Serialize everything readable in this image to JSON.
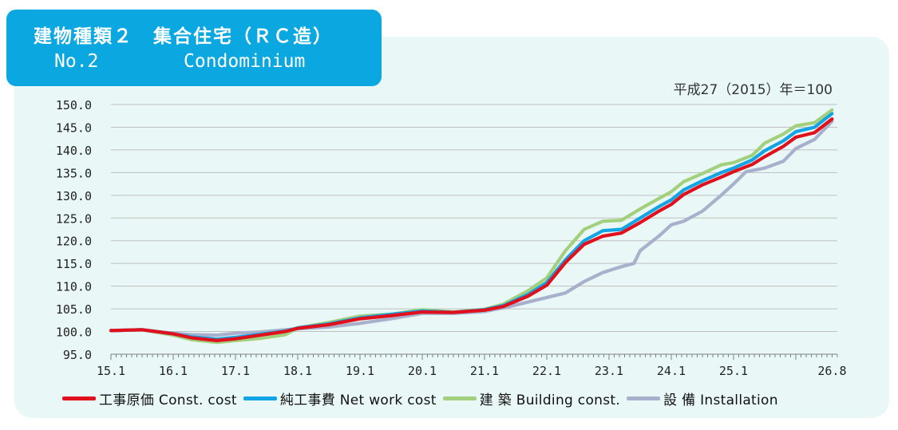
{
  "title": {
    "jp": "建物種類２　集合住宅（ＲＣ造）",
    "no": "No.2",
    "en": "Condominium"
  },
  "base_note": "平成27（2015）年＝100",
  "colors": {
    "title_bg": "#0aa7e0",
    "panel_bg": "#e9f8f6",
    "const_cost": "#e0101c",
    "net_work_cost": "#12a4e4",
    "building_const": "#a3d07c",
    "installation": "#a9b0cb"
  },
  "legend": [
    {
      "label": "工事原価  Const. cost",
      "color": "#e0101c"
    },
    {
      "label": "純工事費  Net work cost",
      "color": "#12a4e4"
    },
    {
      "label": "建 築  Building const.",
      "color": "#a3d07c"
    },
    {
      "label": "設 備  Installation",
      "color": "#a9b0cb"
    }
  ],
  "chart_data": {
    "type": "line",
    "title": "",
    "xlabel": "",
    "ylabel": "",
    "ylim": [
      95.0,
      150.0
    ],
    "yticks": [
      "95.0",
      "100.0",
      "105.0",
      "110.0",
      "115.0",
      "120.0",
      "125.0",
      "130.0",
      "135.0",
      "140.0",
      "145.0",
      "150.0"
    ],
    "xlim": [
      15.0,
      26.667
    ],
    "xticks": [
      {
        "label": "15.1",
        "x": 15.0
      },
      {
        "label": "16.1",
        "x": 16.0
      },
      {
        "label": "17.1",
        "x": 17.0
      },
      {
        "label": "18.1",
        "x": 18.0
      },
      {
        "label": "19.1",
        "x": 19.0
      },
      {
        "label": "20.1",
        "x": 20.0
      },
      {
        "label": "21.1",
        "x": 21.0
      },
      {
        "label": "22.1",
        "x": 22.0
      },
      {
        "label": "23.1",
        "x": 23.0
      },
      {
        "label": "24.1",
        "x": 24.0
      },
      {
        "label": "25.1",
        "x": 25.0
      },
      {
        "label": "26.8",
        "x": 26.583
      }
    ],
    "grid": true,
    "legend_position": "bottom",
    "series": [
      {
        "name": "工事原価  Const. cost",
        "color": "#e0101c",
        "points": [
          [
            15.0,
            100.2
          ],
          [
            15.5,
            100.4
          ],
          [
            16.0,
            99.5
          ],
          [
            16.3,
            98.6
          ],
          [
            16.7,
            98.0
          ],
          [
            17.0,
            98.4
          ],
          [
            17.4,
            99.2
          ],
          [
            17.8,
            100.0
          ],
          [
            18.0,
            100.7
          ],
          [
            18.5,
            101.5
          ],
          [
            19.0,
            102.8
          ],
          [
            19.5,
            103.5
          ],
          [
            20.0,
            104.3
          ],
          [
            20.5,
            104.2
          ],
          [
            21.0,
            104.7
          ],
          [
            21.3,
            105.5
          ],
          [
            21.7,
            107.8
          ],
          [
            22.0,
            110.2
          ],
          [
            22.3,
            115.2
          ],
          [
            22.6,
            119.2
          ],
          [
            22.9,
            121.0
          ],
          [
            23.2,
            121.7
          ],
          [
            23.5,
            124.0
          ],
          [
            23.8,
            126.5
          ],
          [
            24.0,
            128.0
          ],
          [
            24.2,
            130.2
          ],
          [
            24.5,
            132.3
          ],
          [
            24.8,
            134.0
          ],
          [
            25.0,
            135.2
          ],
          [
            25.3,
            136.8
          ],
          [
            25.5,
            138.5
          ],
          [
            25.8,
            140.8
          ],
          [
            26.0,
            142.8
          ],
          [
            26.3,
            143.8
          ],
          [
            26.583,
            146.8
          ]
        ]
      },
      {
        "name": "純工事費  Net work cost",
        "color": "#12a4e4",
        "points": [
          [
            15.0,
            100.2
          ],
          [
            15.5,
            100.4
          ],
          [
            16.0,
            99.5
          ],
          [
            16.3,
            98.8
          ],
          [
            16.7,
            98.3
          ],
          [
            17.0,
            98.7
          ],
          [
            17.4,
            99.4
          ],
          [
            17.8,
            100.1
          ],
          [
            18.0,
            100.8
          ],
          [
            18.5,
            101.7
          ],
          [
            19.0,
            103.0
          ],
          [
            19.5,
            103.8
          ],
          [
            20.0,
            104.5
          ],
          [
            20.5,
            104.2
          ],
          [
            21.0,
            104.8
          ],
          [
            21.3,
            105.7
          ],
          [
            21.7,
            108.2
          ],
          [
            22.0,
            110.8
          ],
          [
            22.3,
            115.8
          ],
          [
            22.6,
            120.0
          ],
          [
            22.9,
            122.2
          ],
          [
            23.2,
            122.5
          ],
          [
            23.5,
            125.0
          ],
          [
            23.8,
            127.5
          ],
          [
            24.0,
            129.0
          ],
          [
            24.2,
            131.2
          ],
          [
            24.5,
            133.2
          ],
          [
            24.8,
            135.0
          ],
          [
            25.0,
            136.0
          ],
          [
            25.3,
            137.8
          ],
          [
            25.5,
            139.8
          ],
          [
            25.8,
            142.0
          ],
          [
            26.0,
            144.0
          ],
          [
            26.3,
            145.0
          ],
          [
            26.583,
            148.0
          ]
        ]
      },
      {
        "name": "建 築  Building const.",
        "color": "#a3d07c",
        "points": [
          [
            15.0,
            100.2
          ],
          [
            15.5,
            100.4
          ],
          [
            16.0,
            99.2
          ],
          [
            16.3,
            98.2
          ],
          [
            16.7,
            97.6
          ],
          [
            17.0,
            98.0
          ],
          [
            17.4,
            98.5
          ],
          [
            17.8,
            99.3
          ],
          [
            18.0,
            100.8
          ],
          [
            18.5,
            102.0
          ],
          [
            19.0,
            103.4
          ],
          [
            19.5,
            103.8
          ],
          [
            20.0,
            104.8
          ],
          [
            20.5,
            104.3
          ],
          [
            21.0,
            104.9
          ],
          [
            21.3,
            106.0
          ],
          [
            21.7,
            109.0
          ],
          [
            22.0,
            111.8
          ],
          [
            22.3,
            117.8
          ],
          [
            22.6,
            122.5
          ],
          [
            22.9,
            124.3
          ],
          [
            23.2,
            124.5
          ],
          [
            23.5,
            127.0
          ],
          [
            23.8,
            129.3
          ],
          [
            24.0,
            130.8
          ],
          [
            24.2,
            133.0
          ],
          [
            24.5,
            134.8
          ],
          [
            24.8,
            136.7
          ],
          [
            25.0,
            137.2
          ],
          [
            25.3,
            138.8
          ],
          [
            25.5,
            141.5
          ],
          [
            25.8,
            143.5
          ],
          [
            26.0,
            145.3
          ],
          [
            26.3,
            146.0
          ],
          [
            26.583,
            148.8
          ]
        ]
      },
      {
        "name": "設 備  Installation",
        "color": "#a9b0cb",
        "points": [
          [
            15.0,
            100.2
          ],
          [
            15.5,
            100.4
          ],
          [
            16.0,
            99.6
          ],
          [
            16.3,
            99.3
          ],
          [
            16.7,
            99.2
          ],
          [
            17.0,
            99.6
          ],
          [
            17.4,
            99.9
          ],
          [
            17.8,
            100.4
          ],
          [
            18.0,
            100.6
          ],
          [
            18.5,
            101.0
          ],
          [
            19.0,
            101.8
          ],
          [
            19.5,
            102.8
          ],
          [
            20.0,
            104.0
          ],
          [
            20.5,
            104.0
          ],
          [
            21.0,
            104.4
          ],
          [
            21.3,
            105.2
          ],
          [
            21.7,
            106.5
          ],
          [
            22.0,
            107.5
          ],
          [
            22.3,
            108.5
          ],
          [
            22.6,
            111.0
          ],
          [
            22.9,
            113.0
          ],
          [
            23.2,
            114.3
          ],
          [
            23.4,
            115.0
          ],
          [
            23.5,
            117.8
          ],
          [
            23.8,
            121.0
          ],
          [
            24.0,
            123.5
          ],
          [
            24.2,
            124.3
          ],
          [
            24.5,
            126.5
          ],
          [
            24.8,
            130.0
          ],
          [
            25.0,
            132.5
          ],
          [
            25.2,
            135.2
          ],
          [
            25.5,
            136.0
          ],
          [
            25.8,
            137.5
          ],
          [
            26.0,
            140.3
          ],
          [
            26.3,
            142.3
          ],
          [
            26.583,
            146.3
          ]
        ]
      }
    ]
  }
}
